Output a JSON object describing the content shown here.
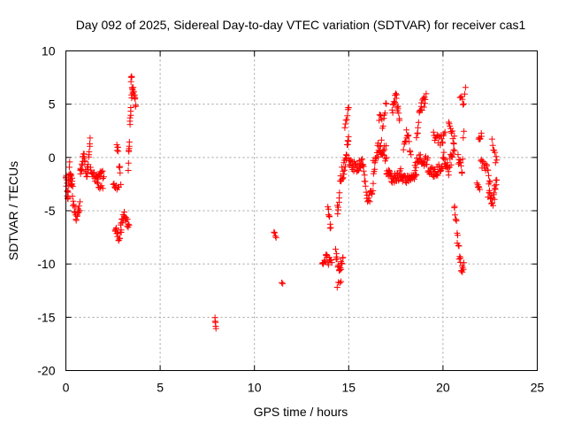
{
  "chart_data": {
    "type": "scatter",
    "title": "Day 092 of 2025, Sidereal Day-to-day VTEC variation (SDTVAR) for receiver cas1",
    "xlabel": "GPS time / hours",
    "ylabel": "SDTVAR / TECUs",
    "xlim": [
      0,
      25
    ],
    "ylim": [
      -20,
      10
    ],
    "xticks": [
      0,
      5,
      10,
      15,
      20,
      25
    ],
    "yticks": [
      -20,
      -15,
      -10,
      -5,
      0,
      5,
      10
    ],
    "grid": true,
    "marker": "+",
    "color": "#ff0000",
    "series": [
      {
        "name": "SDTVAR",
        "segments": [
          {
            "t0": 0.0,
            "t1": 0.35,
            "anchors": [
              [
                0.0,
                -2.0
              ],
              [
                0.1,
                -3.5
              ],
              [
                0.2,
                -1.0
              ],
              [
                0.3,
                -2.5
              ]
            ],
            "spread": 1.6,
            "count": 32
          },
          {
            "t0": 0.35,
            "t1": 0.75,
            "anchors": [
              [
                0.35,
                -4.0
              ],
              [
                0.55,
                -5.5
              ],
              [
                0.75,
                -4.5
              ]
            ],
            "spread": 0.9,
            "count": 18
          },
          {
            "t0": 0.75,
            "t1": 1.3,
            "anchors": [
              [
                0.75,
                -1.5
              ],
              [
                0.95,
                0.0
              ],
              [
                1.1,
                -2.0
              ],
              [
                1.3,
                1.5
              ]
            ],
            "spread": 1.3,
            "count": 30
          },
          {
            "t0": 1.3,
            "t1": 2.0,
            "anchors": [
              [
                1.3,
                -1.0
              ],
              [
                1.6,
                -2.0
              ],
              [
                2.0,
                -1.5
              ]
            ],
            "spread": 1.0,
            "count": 24
          },
          {
            "t0": 1.7,
            "t1": 1.95,
            "anchors": [
              [
                1.7,
                -2.5
              ],
              [
                1.95,
                -3.0
              ]
            ],
            "spread": 0.5,
            "count": 6
          },
          {
            "t0": 2.5,
            "t1": 2.8,
            "anchors": [
              [
                2.5,
                -2.5
              ],
              [
                2.8,
                -3.0
              ]
            ],
            "spread": 0.5,
            "count": 8
          },
          {
            "t0": 2.6,
            "t1": 2.95,
            "anchors": [
              [
                2.6,
                -6.5
              ],
              [
                2.8,
                -7.5
              ],
              [
                2.95,
                -7.0
              ]
            ],
            "spread": 0.8,
            "count": 14
          },
          {
            "t0": 2.7,
            "t1": 2.9,
            "anchors": [
              [
                2.7,
                1.5
              ],
              [
                2.9,
                -2.0
              ]
            ],
            "spread": 1.2,
            "count": 10
          },
          {
            "t0": 2.9,
            "t1": 3.35,
            "anchors": [
              [
                2.9,
                -6.0
              ],
              [
                3.1,
                -5.5
              ],
              [
                3.35,
                -6.5
              ]
            ],
            "spread": 0.8,
            "count": 18
          },
          {
            "t0": 3.3,
            "t1": 3.5,
            "anchors": [
              [
                3.3,
                -1.0
              ],
              [
                3.4,
                3.0
              ],
              [
                3.5,
                6.0
              ]
            ],
            "spread": 1.2,
            "count": 16
          },
          {
            "t0": 3.45,
            "t1": 3.7,
            "anchors": [
              [
                3.45,
                7.5
              ],
              [
                3.6,
                6.0
              ],
              [
                3.7,
                5.0
              ]
            ],
            "spread": 1.0,
            "count": 16
          },
          {
            "t0": 7.9,
            "t1": 7.95,
            "anchors": [
              [
                7.9,
                -15.0
              ],
              [
                7.95,
                -16.0
              ]
            ],
            "spread": 0.4,
            "count": 5
          },
          {
            "t0": 11.05,
            "t1": 11.15,
            "anchors": [
              [
                11.05,
                -7.0
              ],
              [
                11.15,
                -7.5
              ]
            ],
            "spread": 0.2,
            "count": 4
          },
          {
            "t0": 11.45,
            "t1": 11.5,
            "anchors": [
              [
                11.45,
                -11.7
              ],
              [
                11.5,
                -11.8
              ]
            ],
            "spread": 0.1,
            "count": 2
          },
          {
            "t0": 13.6,
            "t1": 14.1,
            "anchors": [
              [
                13.6,
                -10.0
              ],
              [
                13.8,
                -9.5
              ],
              [
                14.1,
                -10.0
              ]
            ],
            "spread": 0.9,
            "count": 18
          },
          {
            "t0": 13.9,
            "t1": 14.05,
            "anchors": [
              [
                13.9,
                -4.5
              ],
              [
                14.05,
                -7.0
              ]
            ],
            "spread": 1.2,
            "count": 8
          },
          {
            "t0": 14.3,
            "t1": 14.7,
            "anchors": [
              [
                14.3,
                -9.0
              ],
              [
                14.5,
                -10.5
              ],
              [
                14.7,
                -9.5
              ]
            ],
            "spread": 1.0,
            "count": 18
          },
          {
            "t0": 14.4,
            "t1": 14.6,
            "anchors": [
              [
                14.4,
                -12.0
              ],
              [
                14.6,
                -11.5
              ]
            ],
            "spread": 0.4,
            "count": 4
          },
          {
            "t0": 14.4,
            "t1": 15.0,
            "anchors": [
              [
                14.4,
                -5.0
              ],
              [
                14.6,
                -2.0
              ],
              [
                14.8,
                -0.5
              ],
              [
                15.0,
                1.5
              ]
            ],
            "spread": 1.6,
            "count": 30
          },
          {
            "t0": 14.8,
            "t1": 15.0,
            "anchors": [
              [
                14.8,
                3.0
              ],
              [
                15.0,
                4.5
              ]
            ],
            "spread": 0.8,
            "count": 8
          },
          {
            "t0": 15.0,
            "t1": 15.8,
            "anchors": [
              [
                15.0,
                -0.5
              ],
              [
                15.4,
                -1.0
              ],
              [
                15.8,
                -0.5
              ]
            ],
            "spread": 1.0,
            "count": 30
          },
          {
            "t0": 15.8,
            "t1": 16.3,
            "anchors": [
              [
                15.8,
                -1.5
              ],
              [
                16.0,
                -4.5
              ],
              [
                16.3,
                -2.5
              ]
            ],
            "spread": 1.2,
            "count": 20
          },
          {
            "t0": 16.3,
            "t1": 17.0,
            "anchors": [
              [
                16.3,
                -1.0
              ],
              [
                16.6,
                1.0
              ],
              [
                17.0,
                0.5
              ]
            ],
            "spread": 1.8,
            "count": 32
          },
          {
            "t0": 16.6,
            "t1": 17.0,
            "anchors": [
              [
                16.6,
                4.0
              ],
              [
                16.8,
                3.0
              ],
              [
                17.0,
                5.0
              ]
            ],
            "spread": 1.0,
            "count": 12
          },
          {
            "t0": 17.0,
            "t1": 17.8,
            "anchors": [
              [
                17.0,
                -1.5
              ],
              [
                17.4,
                -2.0
              ],
              [
                17.8,
                -1.5
              ]
            ],
            "spread": 1.0,
            "count": 34
          },
          {
            "t0": 17.3,
            "t1": 17.7,
            "anchors": [
              [
                17.3,
                4.0
              ],
              [
                17.5,
                6.0
              ],
              [
                17.7,
                3.0
              ]
            ],
            "spread": 1.2,
            "count": 18
          },
          {
            "t0": 17.8,
            "t1": 18.6,
            "anchors": [
              [
                17.8,
                -2.0
              ],
              [
                18.2,
                -2.0
              ],
              [
                18.6,
                -1.5
              ]
            ],
            "spread": 0.8,
            "count": 30
          },
          {
            "t0": 17.9,
            "t1": 18.3,
            "anchors": [
              [
                17.9,
                1.0
              ],
              [
                18.1,
                2.5
              ],
              [
                18.3,
                0.0
              ]
            ],
            "spread": 1.2,
            "count": 14
          },
          {
            "t0": 18.5,
            "t1": 19.2,
            "anchors": [
              [
                18.5,
                -1.0
              ],
              [
                18.8,
                0.0
              ],
              [
                19.2,
                -0.5
              ]
            ],
            "spread": 1.2,
            "count": 26
          },
          {
            "t0": 18.6,
            "t1": 19.1,
            "anchors": [
              [
                18.6,
                2.0
              ],
              [
                18.8,
                4.5
              ],
              [
                19.1,
                5.5
              ]
            ],
            "spread": 1.2,
            "count": 20
          },
          {
            "t0": 19.2,
            "t1": 20.0,
            "anchors": [
              [
                19.2,
                -1.0
              ],
              [
                19.6,
                -1.5
              ],
              [
                20.0,
                -0.5
              ]
            ],
            "spread": 1.0,
            "count": 30
          },
          {
            "t0": 19.5,
            "t1": 20.1,
            "anchors": [
              [
                19.5,
                2.0
              ],
              [
                19.8,
                1.5
              ],
              [
                20.1,
                2.0
              ]
            ],
            "spread": 1.0,
            "count": 18
          },
          {
            "t0": 20.0,
            "t1": 20.6,
            "anchors": [
              [
                20.0,
                0.0
              ],
              [
                20.3,
                -1.0
              ],
              [
                20.6,
                1.0
              ]
            ],
            "spread": 1.4,
            "count": 24
          },
          {
            "t0": 20.3,
            "t1": 20.6,
            "anchors": [
              [
                20.3,
                3.5
              ],
              [
                20.6,
                1.5
              ]
            ],
            "spread": 1.0,
            "count": 10
          },
          {
            "t0": 20.6,
            "t1": 21.1,
            "anchors": [
              [
                20.6,
                -5.0
              ],
              [
                20.8,
                -8.0
              ],
              [
                21.0,
                -10.5
              ]
            ],
            "spread": 1.6,
            "count": 22
          },
          {
            "t0": 20.8,
            "t1": 21.1,
            "anchors": [
              [
                20.8,
                0.0
              ],
              [
                21.0,
                -1.0
              ],
              [
                21.1,
                2.0
              ]
            ],
            "spread": 1.2,
            "count": 12
          },
          {
            "t0": 20.9,
            "t1": 21.2,
            "anchors": [
              [
                20.9,
                6.0
              ],
              [
                21.1,
                5.0
              ],
              [
                21.2,
                7.0
              ]
            ],
            "spread": 0.8,
            "count": 8
          },
          {
            "t0": 21.8,
            "t1": 21.95,
            "anchors": [
              [
                21.8,
                -2.5
              ],
              [
                21.95,
                -3.0
              ]
            ],
            "spread": 0.5,
            "count": 6
          },
          {
            "t0": 21.9,
            "t1": 22.05,
            "anchors": [
              [
                21.9,
                2.0
              ],
              [
                22.05,
                2.0
              ]
            ],
            "spread": 0.6,
            "count": 6
          },
          {
            "t0": 22.0,
            "t1": 22.5,
            "anchors": [
              [
                22.0,
                -0.5
              ],
              [
                22.3,
                -1.0
              ],
              [
                22.5,
                -2.0
              ]
            ],
            "spread": 0.8,
            "count": 16
          },
          {
            "t0": 22.4,
            "t1": 22.85,
            "anchors": [
              [
                22.4,
                -3.0
              ],
              [
                22.6,
                -4.5
              ],
              [
                22.85,
                -2.0
              ]
            ],
            "spread": 1.6,
            "count": 22
          },
          {
            "t0": 22.6,
            "t1": 22.85,
            "anchors": [
              [
                22.6,
                1.5
              ],
              [
                22.85,
                -0.5
              ]
            ],
            "spread": 1.0,
            "count": 8
          }
        ]
      }
    ]
  }
}
